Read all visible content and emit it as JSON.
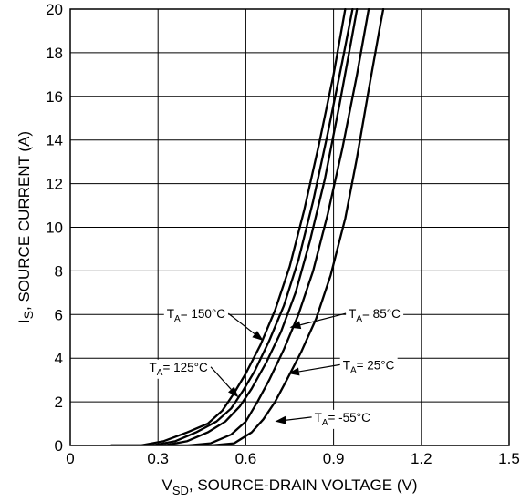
{
  "chart_data": {
    "type": "line",
    "title": "",
    "xlabel": {
      "main": "V",
      "sub": "SD",
      "rest": ", SOURCE-DRAIN VOLTAGE (V)"
    },
    "ylabel": {
      "main": "I",
      "sub": "S",
      "rest": ", SOURCE CURRENT (A)"
    },
    "xlim": [
      0,
      1.5
    ],
    "ylim": [
      0,
      20
    ],
    "x_ticks": [
      0,
      0.3,
      0.6,
      0.9,
      1.2,
      1.5
    ],
    "x_tick_labels": [
      "0",
      "0.3",
      "0.6",
      "0.9",
      "1.2",
      "1.5"
    ],
    "y_ticks": [
      0,
      2,
      4,
      6,
      8,
      10,
      12,
      14,
      16,
      18,
      20
    ],
    "y_tick_labels": [
      "0",
      "2",
      "4",
      "6",
      "8",
      "10",
      "12",
      "14",
      "16",
      "18",
      "20"
    ],
    "grid": true,
    "legend": "none",
    "series": [
      {
        "name": "T_A = 150°C",
        "points": [
          [
            0.14,
            0
          ],
          [
            0.24,
            0
          ],
          [
            0.32,
            0.2
          ],
          [
            0.4,
            0.6
          ],
          [
            0.47,
            1.0
          ],
          [
            0.52,
            1.6
          ],
          [
            0.56,
            2.4
          ],
          [
            0.6,
            3.3
          ],
          [
            0.65,
            4.6
          ],
          [
            0.7,
            6.2
          ],
          [
            0.75,
            8.2
          ],
          [
            0.8,
            10.8
          ],
          [
            0.85,
            13.8
          ],
          [
            0.9,
            17.0
          ],
          [
            0.94,
            20.0
          ]
        ]
      },
      {
        "name": "T_A = 125°C",
        "points": [
          [
            0.14,
            0
          ],
          [
            0.28,
            0
          ],
          [
            0.36,
            0.2
          ],
          [
            0.43,
            0.6
          ],
          [
            0.5,
            1.1
          ],
          [
            0.55,
            1.7
          ],
          [
            0.59,
            2.5
          ],
          [
            0.63,
            3.4
          ],
          [
            0.68,
            4.8
          ],
          [
            0.73,
            6.4
          ],
          [
            0.78,
            8.5
          ],
          [
            0.83,
            11.2
          ],
          [
            0.88,
            14.3
          ],
          [
            0.93,
            17.6
          ],
          [
            0.965,
            20.0
          ]
        ]
      },
      {
        "name": "T_A = 85°C",
        "points": [
          [
            0.14,
            0
          ],
          [
            0.32,
            0
          ],
          [
            0.4,
            0.2
          ],
          [
            0.47,
            0.6
          ],
          [
            0.53,
            1.1
          ],
          [
            0.58,
            1.8
          ],
          [
            0.62,
            2.6
          ],
          [
            0.67,
            3.8
          ],
          [
            0.72,
            5.2
          ],
          [
            0.77,
            7.0
          ],
          [
            0.82,
            9.4
          ],
          [
            0.87,
            12.2
          ],
          [
            0.92,
            15.6
          ],
          [
            0.96,
            18.5
          ],
          [
            0.98,
            20.0
          ]
        ]
      },
      {
        "name": "T_A = 25°C",
        "points": [
          [
            0.14,
            0
          ],
          [
            0.4,
            0
          ],
          [
            0.48,
            0.1
          ],
          [
            0.55,
            0.5
          ],
          [
            0.6,
            1.1
          ],
          [
            0.64,
            2.0
          ],
          [
            0.68,
            3.0
          ],
          [
            0.73,
            4.4
          ],
          [
            0.78,
            6.0
          ],
          [
            0.83,
            8.0
          ],
          [
            0.88,
            10.6
          ],
          [
            0.93,
            13.6
          ],
          [
            0.98,
            17.0
          ],
          [
            1.02,
            20.0
          ]
        ]
      },
      {
        "name": "T_A = -55°C",
        "points": [
          [
            0.14,
            0
          ],
          [
            0.48,
            0
          ],
          [
            0.56,
            0.1
          ],
          [
            0.62,
            0.6
          ],
          [
            0.66,
            1.2
          ],
          [
            0.7,
            2.0
          ],
          [
            0.74,
            3.0
          ],
          [
            0.79,
            4.3
          ],
          [
            0.84,
            5.8
          ],
          [
            0.89,
            7.8
          ],
          [
            0.94,
            10.4
          ],
          [
            0.98,
            13.2
          ],
          [
            1.02,
            16.3
          ],
          [
            1.06,
            19.3
          ],
          [
            1.07,
            20.0
          ]
        ]
      }
    ],
    "annotations": [
      {
        "main": "T",
        "sub": "A",
        "rest": "= 150°C",
        "label_x": 0.43,
        "label_y": 6.05,
        "tip_x": 0.66,
        "tip_y": 4.8,
        "series": "T_A = 150°C"
      },
      {
        "main": "T",
        "sub": "A",
        "rest": "= 125°C",
        "label_x": 0.37,
        "label_y": 3.6,
        "tip_x": 0.575,
        "tip_y": 2.2,
        "series": "T_A = 125°C"
      },
      {
        "main": "T",
        "sub": "A",
        "rest": "= 85°C",
        "label_x": 1.04,
        "label_y": 6.05,
        "tip_x": 0.75,
        "tip_y": 5.4,
        "series": "T_A = 85°C"
      },
      {
        "main": "T",
        "sub": "A",
        "rest": "= 25°C",
        "label_x": 1.02,
        "label_y": 3.7,
        "tip_x": 0.745,
        "tip_y": 3.3,
        "series": "T_A = 25°C"
      },
      {
        "main": "T",
        "sub": "A",
        "rest": "= -55°C",
        "label_x": 0.93,
        "label_y": 1.3,
        "tip_x": 0.7,
        "tip_y": 1.1,
        "series": "T_A = -55°C"
      }
    ]
  }
}
